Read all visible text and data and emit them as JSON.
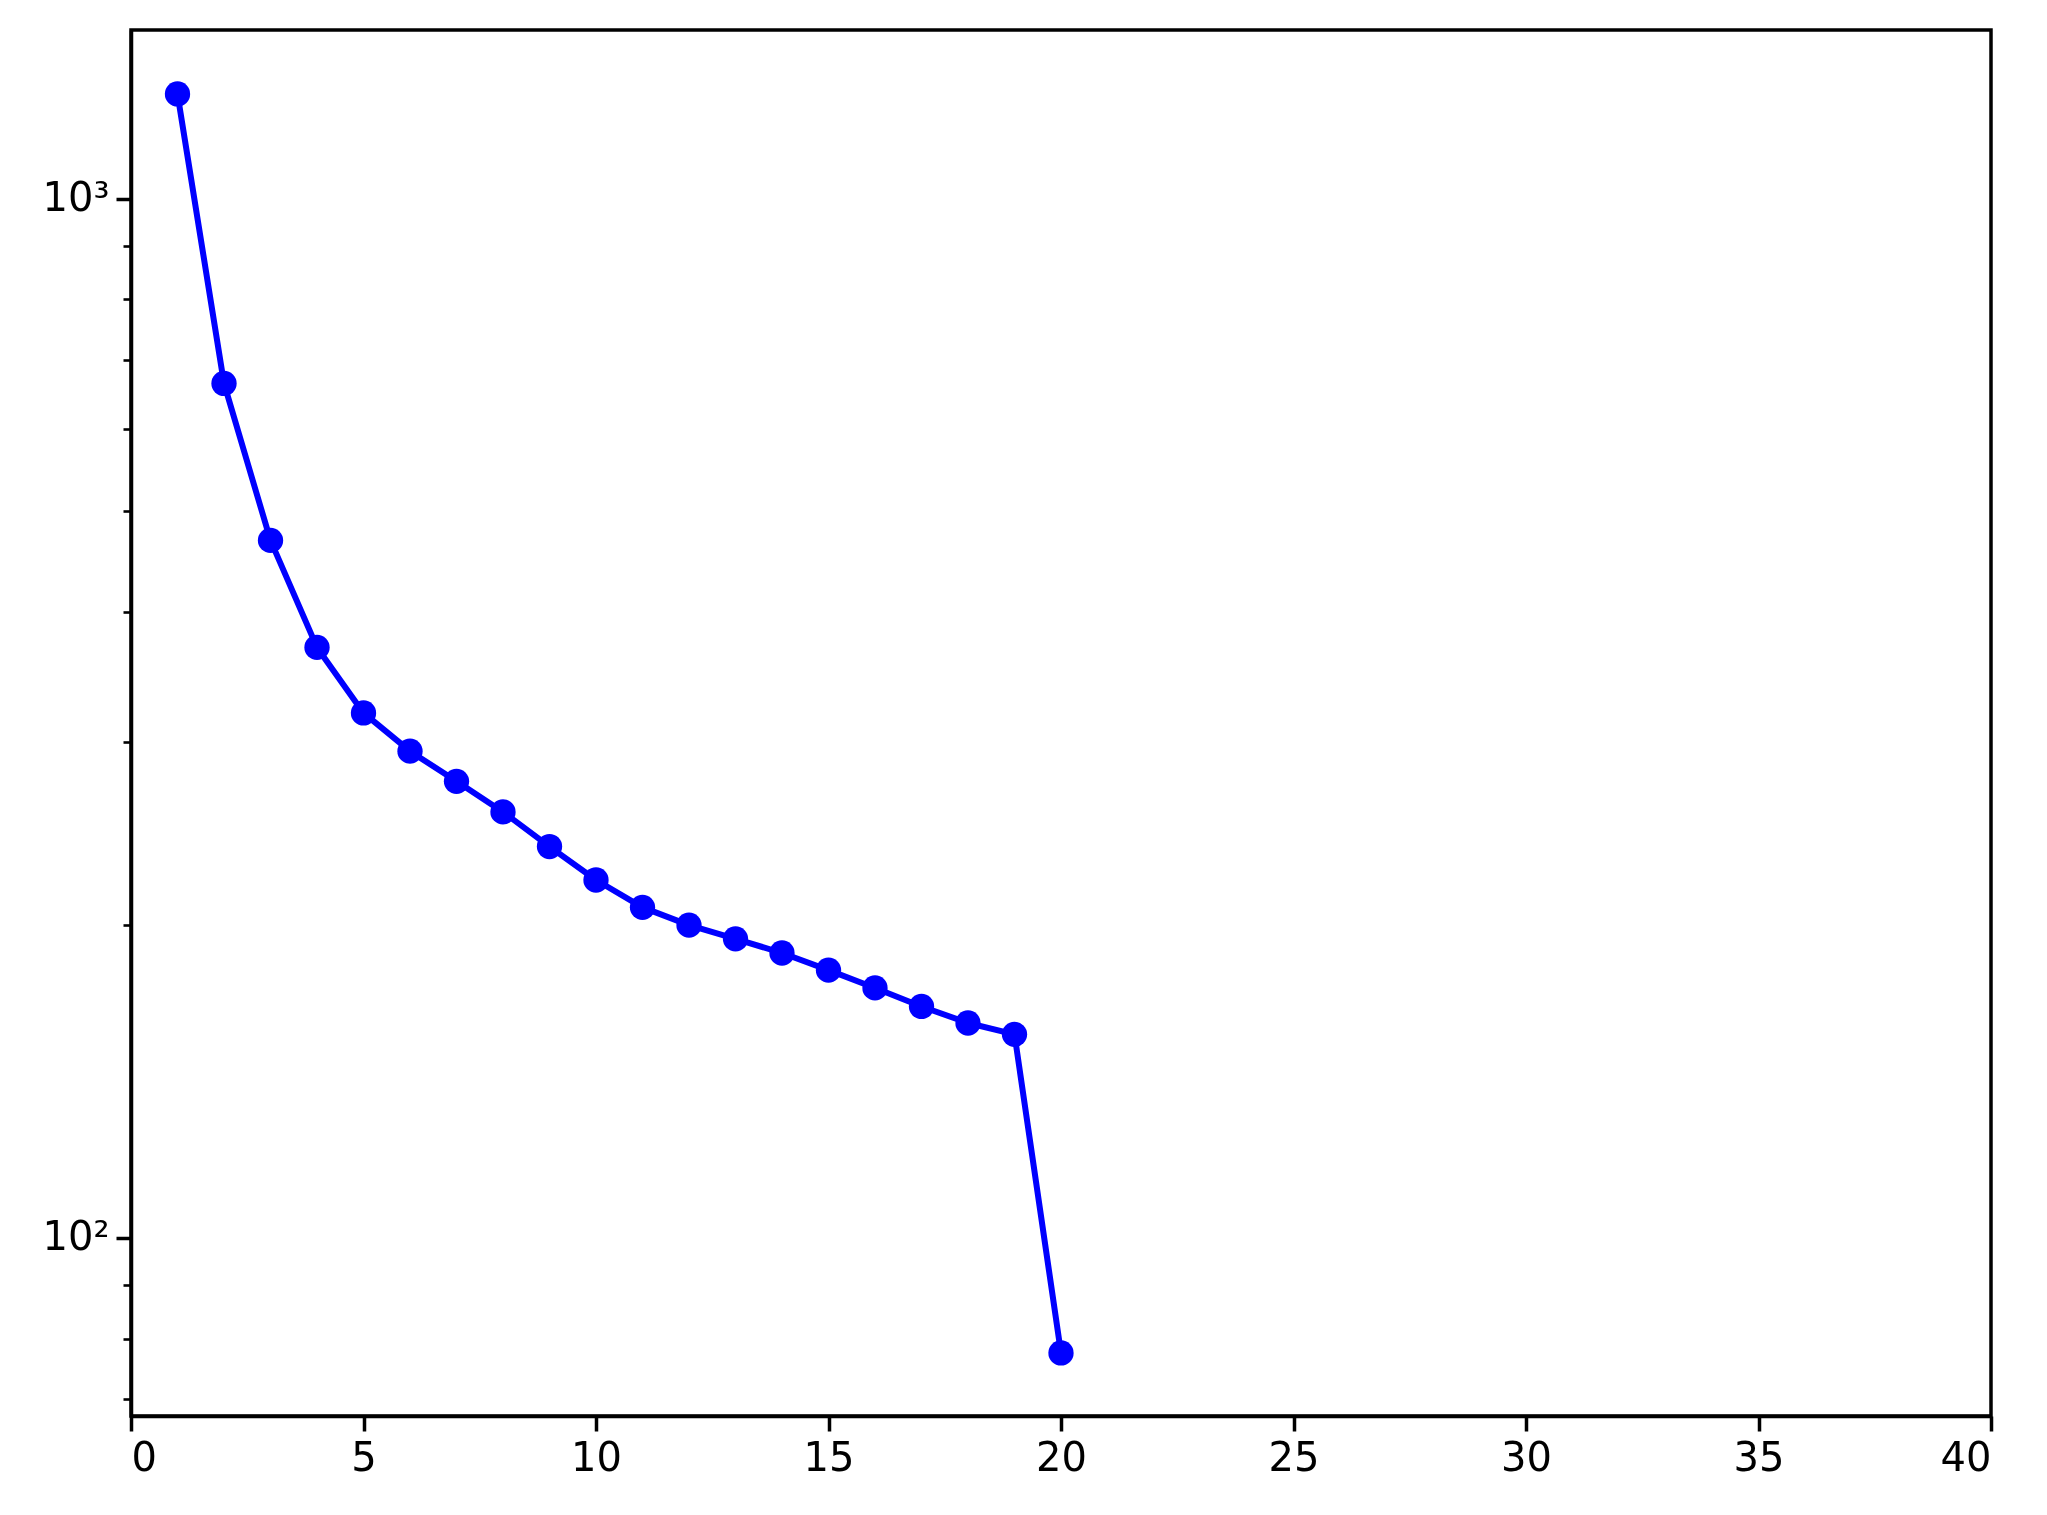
{
  "chart_data": {
    "type": "line",
    "x": [
      1,
      2,
      3,
      4,
      5,
      6,
      7,
      8,
      9,
      10,
      11,
      12,
      13,
      14,
      15,
      16,
      17,
      18,
      19,
      20
    ],
    "series": [
      {
        "color": "#0000ff",
        "values": [
          1261,
          664,
          469,
          370,
          320,
          294,
          275,
          257,
          238,
          221,
          208,
          200,
          194,
          188,
          181,
          174,
          167,
          161,
          157,
          77.5
        ]
      }
    ],
    "xlim": [
      0,
      40
    ],
    "xticks": [
      0,
      5,
      10,
      15,
      20,
      25,
      30,
      35,
      40
    ],
    "ylim": [
      67.4,
      1453
    ],
    "yticks": [
      {
        "value": 70,
        "label": null
      },
      {
        "value": 80,
        "label": null
      },
      {
        "value": 90,
        "label": null
      },
      {
        "value": 100,
        "label": "10²"
      },
      {
        "value": 200,
        "label": null
      },
      {
        "value": 300,
        "label": null
      },
      {
        "value": 400,
        "label": null
      },
      {
        "value": 500,
        "label": null
      },
      {
        "value": 600,
        "label": null
      },
      {
        "value": 700,
        "label": null
      },
      {
        "value": 800,
        "label": null
      },
      {
        "value": 900,
        "label": null
      },
      {
        "value": 1000,
        "label": "10³"
      }
    ],
    "log": "y",
    "marker": "circle",
    "line_style": "solid",
    "grid": false
  }
}
